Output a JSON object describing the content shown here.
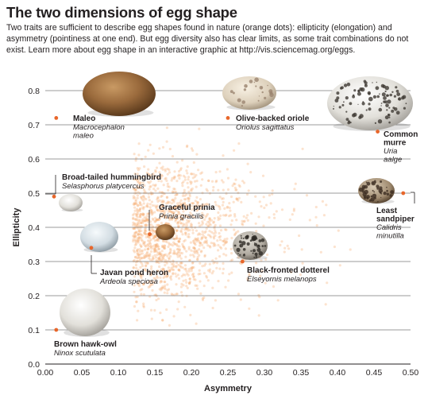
{
  "header": {
    "title": "The two dimensions of egg shape",
    "subtitle": "Two traits are sufficient to describe egg shapes found in nature (orange dots): ellipticity (elongation) and asymmetry (pointiness at one end). But egg diversity also has clear limits, as some trait combinations do not exist. Learn more about egg shape in an interactive graphic at http://vis.sciencemag.org/eggs."
  },
  "colors": {
    "accent": "#e8662a",
    "cloud": "#f6a96a",
    "grid": "#7a7a7a",
    "text": "#231f20"
  },
  "chart_data": {
    "type": "scatter",
    "title": "The two dimensions of egg shape",
    "xlabel": "Asymmetry",
    "ylabel": "Ellipticity",
    "xlim": [
      0,
      0.5
    ],
    "ylim": [
      0,
      0.8
    ],
    "xticks": [
      "0.00",
      "0.05",
      "0.10",
      "0.15",
      "0.20",
      "0.25",
      "0.30",
      "0.35",
      "0.40",
      "0.45",
      "0.50"
    ],
    "yticks": [
      "0.0",
      "0.1",
      "0.2",
      "0.3",
      "0.4",
      "0.5",
      "0.6",
      "0.7",
      "0.8"
    ],
    "grid": "horizontal",
    "highlighted_species": [
      {
        "common": "Maleo",
        "scientific": "Macrocephalon maleo",
        "asymmetry": 0.015,
        "ellipticity": 0.72,
        "egg": "plain-brown"
      },
      {
        "common": "Olive-backed oriole",
        "scientific": "Oriolus sagittatus",
        "asymmetry": 0.25,
        "ellipticity": 0.72,
        "egg": "speckled-cream"
      },
      {
        "common": "Common murre",
        "scientific": "Uria aalge",
        "asymmetry": 0.455,
        "ellipticity": 0.68,
        "egg": "blotched-white"
      },
      {
        "common": "Broad-tailed hummingbird",
        "scientific": "Selasphorus platycercus",
        "asymmetry": 0.012,
        "ellipticity": 0.49,
        "egg": "plain-white"
      },
      {
        "common": "Least sandpiper",
        "scientific": "Calidris minutilla",
        "asymmetry": 0.49,
        "ellipticity": 0.5,
        "egg": "speckled-brown"
      },
      {
        "common": "Graceful prinia",
        "scientific": "Prinia gracilis",
        "asymmetry": 0.143,
        "ellipticity": 0.38,
        "egg": "plain-brown"
      },
      {
        "common": "Javan pond heron",
        "scientific": "Ardeola speciosa",
        "asymmetry": 0.063,
        "ellipticity": 0.34,
        "egg": "plain-blue"
      },
      {
        "common": "Black-fronted dotterel",
        "scientific": "Elseyornis melanops",
        "asymmetry": 0.27,
        "ellipticity": 0.3,
        "egg": "speckled-grey"
      },
      {
        "common": "Brown hawk-owl",
        "scientific": "Ninox scutulata",
        "asymmetry": 0.015,
        "ellipticity": 0.1,
        "egg": "plain-white"
      }
    ]
  }
}
